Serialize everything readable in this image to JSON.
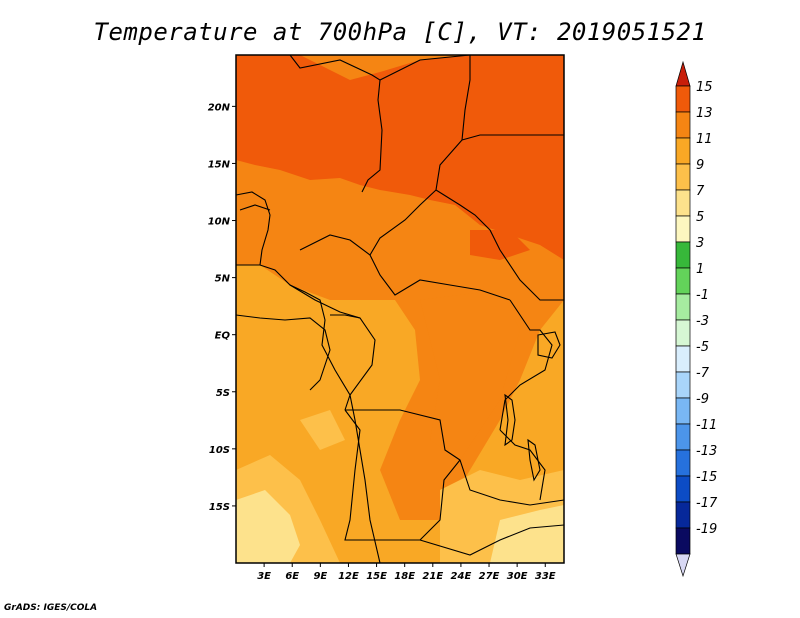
{
  "title": "Temperature at 700hPa [C], VT: 2019051521",
  "credit": "GrADS: IGES/COLA",
  "map": {
    "lon_range": [
      0,
      35
    ],
    "lat_range": [
      -20,
      24.5
    ],
    "x_ticks": [
      "3E",
      "6E",
      "9E",
      "12E",
      "15E",
      "18E",
      "21E",
      "24E",
      "27E",
      "30E",
      "33E"
    ],
    "x_tick_values": [
      3,
      6,
      9,
      12,
      15,
      18,
      21,
      24,
      27,
      30,
      33
    ],
    "y_ticks": [
      "20N",
      "15N",
      "10N",
      "5N",
      "EQ",
      "5S",
      "10S",
      "15S"
    ],
    "y_tick_values": [
      20,
      15,
      10,
      5,
      0,
      -5,
      -10,
      -15
    ]
  },
  "colorbar": {
    "labels": [
      "15",
      "13",
      "11",
      "9",
      "7",
      "5",
      "3",
      "1",
      "-1",
      "-3",
      "-5",
      "-7",
      "-9",
      "-11",
      "-13",
      "-15",
      "-17",
      "-19"
    ],
    "colors": [
      "#e03208",
      "#f05a0a",
      "#f58513",
      "#f9a825",
      "#fdc04a",
      "#fde28c",
      "#fdf7c0",
      "#37b83a",
      "#63d35a",
      "#a6eca0",
      "#d6f7d4",
      "#d9eefd",
      "#a9d5fa",
      "#79b7f4",
      "#4c95ea",
      "#2671dd",
      "#0c4cc5",
      "#06289a",
      "#0a0a60",
      "#d8d8f4"
    ],
    "top_arrow_color": "#c81e0a",
    "bottom_arrow_color": "#d8d8f4"
  },
  "fields": {
    "base": "#f9a825",
    "warm_1": "#f58513",
    "warm_2": "#f05a0a",
    "cool_1": "#fdc04a",
    "cool_2": "#fde28c"
  }
}
